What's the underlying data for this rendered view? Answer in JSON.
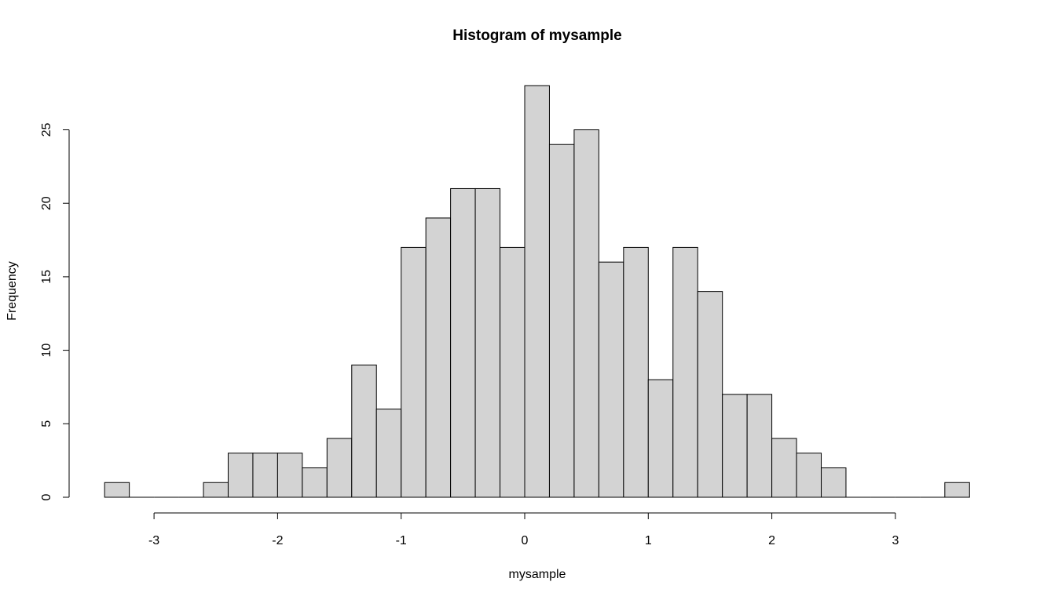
{
  "chart_data": {
    "type": "bar",
    "title": "Histogram of mysample",
    "xlabel": "mysample",
    "ylabel": "Frequency",
    "bar_color": "#d3d3d3",
    "edge_color": "#000000",
    "bins": [
      {
        "start": -3.4,
        "end": -3.2,
        "count": 1
      },
      {
        "start": -3.2,
        "end": -3.0,
        "count": 0
      },
      {
        "start": -3.0,
        "end": -2.8,
        "count": 0
      },
      {
        "start": -2.8,
        "end": -2.6,
        "count": 0
      },
      {
        "start": -2.6,
        "end": -2.4,
        "count": 1
      },
      {
        "start": -2.4,
        "end": -2.2,
        "count": 3
      },
      {
        "start": -2.2,
        "end": -2.0,
        "count": 3
      },
      {
        "start": -2.0,
        "end": -1.8,
        "count": 3
      },
      {
        "start": -1.8,
        "end": -1.6,
        "count": 2
      },
      {
        "start": -1.6,
        "end": -1.4,
        "count": 4
      },
      {
        "start": -1.4,
        "end": -1.2,
        "count": 9
      },
      {
        "start": -1.2,
        "end": -1.0,
        "count": 6
      },
      {
        "start": -1.0,
        "end": -0.8,
        "count": 17
      },
      {
        "start": -0.8,
        "end": -0.6,
        "count": 19
      },
      {
        "start": -0.6,
        "end": -0.4,
        "count": 21
      },
      {
        "start": -0.4,
        "end": -0.2,
        "count": 21
      },
      {
        "start": -0.2,
        "end": 0.0,
        "count": 17
      },
      {
        "start": 0.0,
        "end": 0.2,
        "count": 28
      },
      {
        "start": 0.2,
        "end": 0.4,
        "count": 24
      },
      {
        "start": 0.4,
        "end": 0.6,
        "count": 25
      },
      {
        "start": 0.6,
        "end": 0.8,
        "count": 16
      },
      {
        "start": 0.8,
        "end": 1.0,
        "count": 17
      },
      {
        "start": 1.0,
        "end": 1.2,
        "count": 8
      },
      {
        "start": 1.2,
        "end": 1.4,
        "count": 17
      },
      {
        "start": 1.4,
        "end": 1.6,
        "count": 14
      },
      {
        "start": 1.6,
        "end": 1.8,
        "count": 7
      },
      {
        "start": 1.8,
        "end": 2.0,
        "count": 7
      },
      {
        "start": 2.0,
        "end": 2.2,
        "count": 4
      },
      {
        "start": 2.2,
        "end": 2.4,
        "count": 3
      },
      {
        "start": 2.4,
        "end": 2.6,
        "count": 2
      },
      {
        "start": 2.6,
        "end": 2.8,
        "count": 0
      },
      {
        "start": 2.8,
        "end": 3.0,
        "count": 0
      },
      {
        "start": 3.0,
        "end": 3.2,
        "count": 0
      },
      {
        "start": 3.2,
        "end": 3.4,
        "count": 0
      },
      {
        "start": 3.4,
        "end": 3.6,
        "count": 1
      }
    ],
    "x_ticks": [
      -3,
      -2,
      -1,
      0,
      1,
      2,
      3
    ],
    "x_tick_labels": [
      "-3",
      "-2",
      "-1",
      "0",
      "1",
      "2",
      "3"
    ],
    "y_ticks": [
      0,
      5,
      10,
      15,
      20,
      25
    ],
    "y_tick_labels": [
      "0",
      "5",
      "10",
      "15",
      "20",
      "25"
    ],
    "xlim": [
      -3.4,
      3.6
    ],
    "ylim": [
      0,
      28
    ],
    "grid": false,
    "legend": "none"
  }
}
